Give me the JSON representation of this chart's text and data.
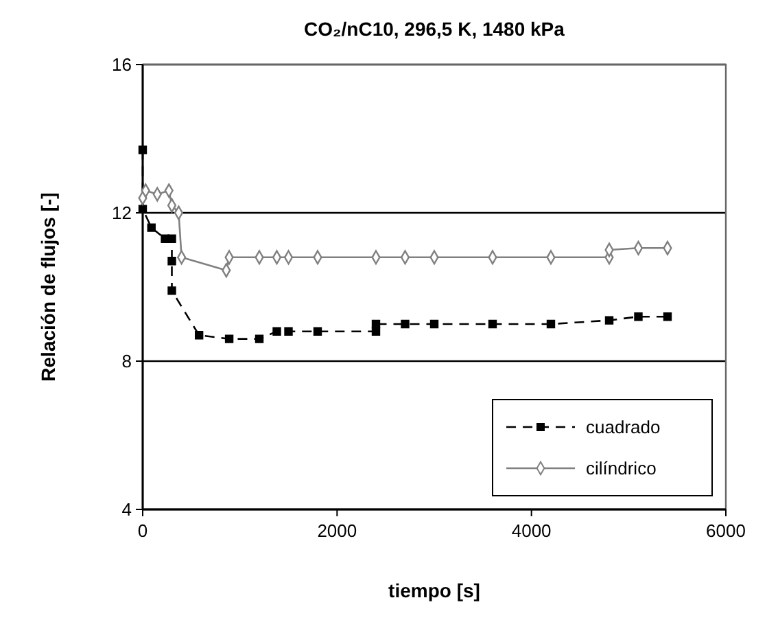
{
  "chart_data": {
    "type": "line",
    "title": "CO₂/nC10, 296,5 K, 1480 kPa",
    "xlabel": "tiempo [s]",
    "ylabel": "Relación de flujos [-]",
    "xlim": [
      0,
      6000
    ],
    "xticks": [
      0,
      2000,
      4000,
      6000
    ],
    "ylim": [
      4,
      16
    ],
    "yticks": [
      4,
      8,
      12,
      16
    ],
    "grid": "y",
    "legend": "bottom right",
    "series": [
      {
        "name": "cuadrado",
        "color": "#000000",
        "marker": "square",
        "line_style": "dashed",
        "x": [
          0,
          0,
          90,
          230,
          300,
          300,
          300,
          580,
          890,
          1200,
          1380,
          1500,
          1800,
          2400,
          2400,
          2700,
          3000,
          3600,
          4200,
          4800,
          5100,
          5400
        ],
        "values": [
          13.7,
          12.1,
          11.6,
          11.3,
          11.3,
          10.7,
          9.9,
          8.7,
          8.6,
          8.6,
          8.8,
          8.8,
          8.8,
          8.8,
          9.0,
          9.0,
          9.0,
          9.0,
          9.0,
          9.1,
          9.2,
          9.2
        ]
      },
      {
        "name": "cilíndrico",
        "color": "#808080",
        "marker": "diamond",
        "line_style": "solid",
        "x": [
          0,
          30,
          150,
          270,
          300,
          370,
          400,
          860,
          890,
          1200,
          1380,
          1500,
          1800,
          2400,
          2700,
          3000,
          3600,
          4200,
          4800,
          4800,
          5100,
          5400
        ],
        "values": [
          12.4,
          12.6,
          12.5,
          12.6,
          12.2,
          12.0,
          10.8,
          10.45,
          10.8,
          10.8,
          10.8,
          10.8,
          10.8,
          10.8,
          10.8,
          10.8,
          10.8,
          10.8,
          10.8,
          11.0,
          11.05,
          11.05
        ]
      }
    ]
  }
}
